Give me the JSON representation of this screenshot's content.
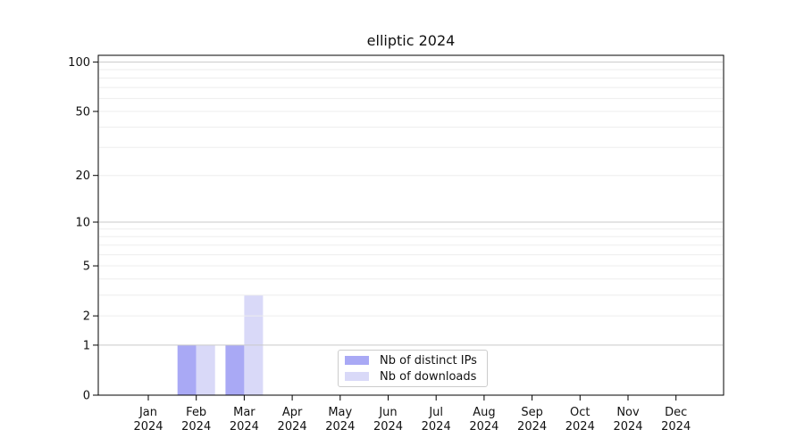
{
  "title": "elliptic 2024",
  "colors": {
    "distinct_ips": "#a9a9f5",
    "downloads": "#d9d9f8",
    "grid_major": "#c9c9c9",
    "grid_minor": "#ededed",
    "axis": "#000000",
    "text": "#111111",
    "legend_border": "#cccccc"
  },
  "legend": {
    "items": [
      {
        "label": "Nb of distinct IPs",
        "color_key": "distinct_ips"
      },
      {
        "label": "Nb of downloads",
        "color_key": "downloads"
      }
    ]
  },
  "chart_data": {
    "type": "bar",
    "title": "elliptic 2024",
    "categories": [
      "Jan 2024",
      "Feb 2024",
      "Mar 2024",
      "Apr 2024",
      "May 2024",
      "Jun 2024",
      "Jul 2024",
      "Aug 2024",
      "Sep 2024",
      "Oct 2024",
      "Nov 2024",
      "Dec 2024"
    ],
    "series": [
      {
        "name": "Nb of distinct IPs",
        "color_key": "distinct_ips",
        "values": [
          0,
          1,
          1,
          0,
          0,
          0,
          0,
          0,
          0,
          0,
          0,
          0
        ]
      },
      {
        "name": "Nb of downloads",
        "color_key": "downloads",
        "values": [
          0,
          1,
          3,
          0,
          0,
          0,
          0,
          0,
          0,
          0,
          0,
          0
        ]
      }
    ],
    "xlabel": "",
    "ylabel": "",
    "yscale": "log1p",
    "ylim": [
      0,
      110
    ],
    "ytick_labels": [
      0,
      1,
      2,
      5,
      10,
      20,
      50,
      100
    ],
    "grid_major_values": [
      1,
      10,
      100
    ],
    "grid_minor_values": [
      2,
      3,
      4,
      5,
      6,
      7,
      8,
      9,
      20,
      30,
      40,
      50,
      60,
      70,
      80,
      90
    ],
    "grid": "on",
    "legend_position": "bottom-center"
  }
}
